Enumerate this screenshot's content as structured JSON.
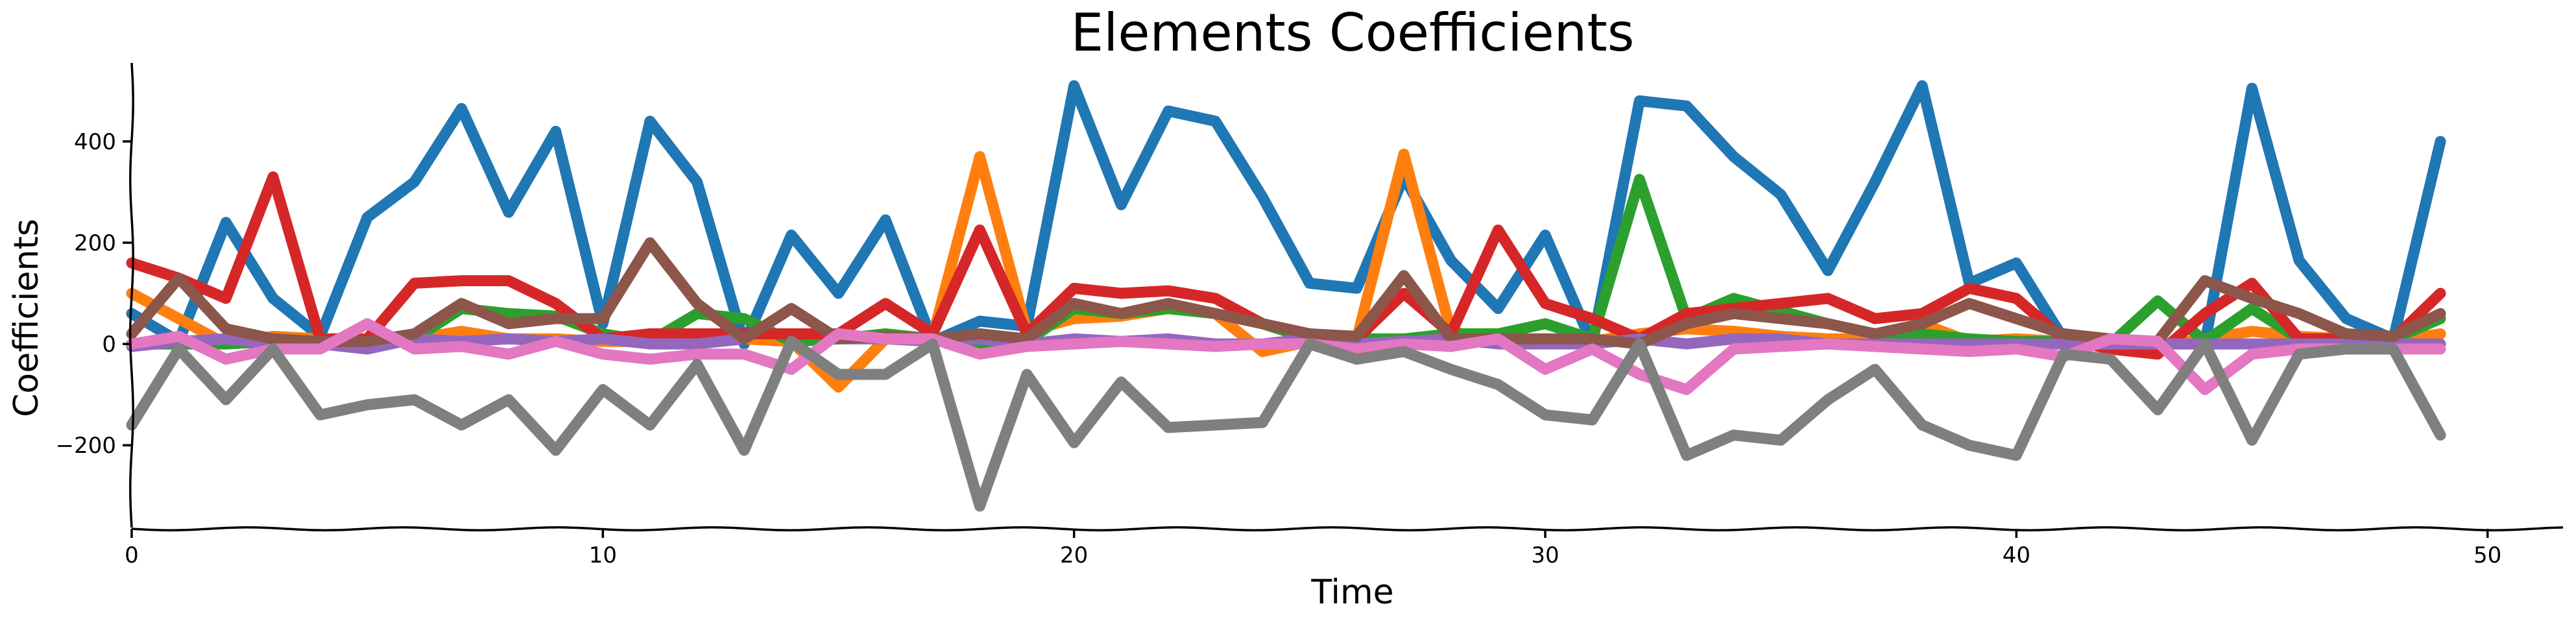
{
  "chart_data": {
    "type": "line",
    "title": "Elements Coefficients",
    "xlabel": "Time",
    "ylabel": "Coefficients",
    "xlim": [
      0,
      50.5
    ],
    "ylim": [
      -365,
      555
    ],
    "xticks": [
      0,
      10,
      20,
      30,
      40,
      50
    ],
    "yticks": [
      -200,
      0,
      200,
      400
    ],
    "ytick_labels": [
      "−200",
      "0",
      "200",
      "400"
    ],
    "grid": false,
    "legend": "none",
    "x": [
      0,
      1,
      2,
      3,
      4,
      5,
      6,
      7,
      8,
      9,
      10,
      11,
      12,
      13,
      14,
      15,
      16,
      17,
      18,
      19,
      20,
      21,
      22,
      23,
      24,
      25,
      26,
      27,
      28,
      29,
      30,
      31,
      32,
      33,
      34,
      35,
      36,
      37,
      38,
      39,
      40,
      41,
      42,
      43,
      44,
      45,
      46,
      47,
      48,
      49
    ],
    "series": [
      {
        "color": "#1f77b4",
        "values": [
          60,
          5,
          240,
          90,
          15,
          250,
          320,
          465,
          260,
          420,
          40,
          440,
          320,
          0,
          215,
          100,
          245,
          5,
          45,
          35,
          510,
          275,
          460,
          440,
          290,
          120,
          110,
          330,
          165,
          70,
          215,
          0,
          480,
          470,
          370,
          295,
          145,
          320,
          510,
          120,
          160,
          10,
          0,
          0,
          0,
          505,
          165,
          50,
          10,
          400
        ]
      },
      {
        "color": "#ff7f0e",
        "values": [
          100,
          50,
          0,
          15,
          10,
          5,
          10,
          25,
          10,
          10,
          5,
          5,
          10,
          10,
          5,
          -85,
          10,
          15,
          370,
          25,
          50,
          55,
          70,
          60,
          -15,
          5,
          10,
          375,
          25,
          5,
          10,
          5,
          20,
          30,
          25,
          15,
          10,
          10,
          40,
          5,
          10,
          5,
          0,
          -5,
          10,
          25,
          15,
          10,
          5,
          20
        ]
      },
      {
        "color": "#2ca02c",
        "values": [
          0,
          0,
          0,
          5,
          0,
          10,
          10,
          70,
          60,
          55,
          20,
          5,
          60,
          50,
          5,
          10,
          20,
          10,
          0,
          5,
          70,
          60,
          70,
          60,
          40,
          10,
          10,
          10,
          20,
          20,
          40,
          10,
          325,
          50,
          90,
          65,
          40,
          20,
          20,
          10,
          5,
          5,
          0,
          85,
          5,
          70,
          10,
          0,
          10,
          50
        ]
      },
      {
        "color": "#d62728",
        "values": [
          160,
          130,
          90,
          330,
          10,
          10,
          120,
          125,
          125,
          80,
          10,
          20,
          20,
          20,
          20,
          20,
          80,
          20,
          225,
          20,
          110,
          100,
          105,
          90,
          40,
          20,
          10,
          100,
          20,
          225,
          80,
          50,
          10,
          60,
          70,
          80,
          90,
          50,
          60,
          110,
          90,
          10,
          -10,
          -20,
          60,
          120,
          10,
          10,
          10,
          100
        ]
      },
      {
        "color": "#9467bd",
        "values": [
          -5,
          5,
          10,
          0,
          0,
          -10,
          10,
          5,
          10,
          5,
          10,
          0,
          0,
          10,
          70,
          10,
          10,
          5,
          10,
          0,
          10,
          5,
          10,
          0,
          0,
          10,
          0,
          5,
          10,
          0,
          0,
          0,
          10,
          0,
          10,
          10,
          0,
          0,
          0,
          0,
          0,
          0,
          0,
          0,
          0,
          0,
          0,
          0,
          0,
          0
        ]
      },
      {
        "color": "#8c564b",
        "values": [
          20,
          130,
          30,
          10,
          5,
          5,
          20,
          80,
          40,
          50,
          50,
          200,
          80,
          10,
          70,
          10,
          15,
          10,
          20,
          10,
          80,
          60,
          80,
          60,
          40,
          20,
          15,
          135,
          10,
          10,
          10,
          10,
          0,
          40,
          60,
          50,
          40,
          20,
          40,
          80,
          50,
          20,
          10,
          5,
          125,
          90,
          60,
          20,
          15,
          60
        ]
      },
      {
        "color": "#e377c2",
        "values": [
          0,
          15,
          -30,
          -10,
          -10,
          40,
          -10,
          -5,
          -20,
          5,
          -20,
          -30,
          -20,
          -20,
          -50,
          20,
          10,
          10,
          -20,
          -5,
          0,
          5,
          0,
          -5,
          0,
          0,
          -10,
          0,
          -5,
          10,
          -50,
          -10,
          -60,
          -90,
          -10,
          -5,
          0,
          -5,
          -10,
          -15,
          -10,
          -25,
          10,
          5,
          -90,
          -20,
          -10,
          -10,
          -10,
          -10
        ]
      },
      {
        "color": "#7f7f7f",
        "values": [
          -160,
          -10,
          -110,
          -10,
          -140,
          -120,
          -110,
          -160,
          -110,
          -210,
          -90,
          -160,
          -40,
          -210,
          5,
          -60,
          -60,
          0,
          -320,
          -60,
          -195,
          -75,
          -165,
          -160,
          -155,
          0,
          -30,
          -15,
          -50,
          -80,
          -140,
          -150,
          0,
          -220,
          -180,
          -190,
          -110,
          -50,
          -160,
          -200,
          -220,
          -20,
          -30,
          -130,
          0,
          -190,
          -20,
          -10,
          -10,
          -180
        ]
      }
    ]
  }
}
